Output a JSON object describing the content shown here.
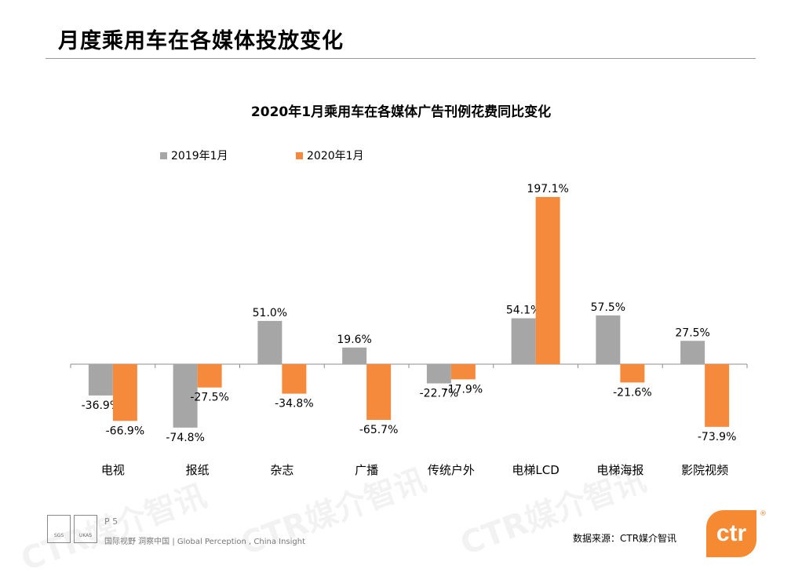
{
  "page": {
    "title": "月度乘用车在各媒体投放变化"
  },
  "chart_data": {
    "type": "bar",
    "title": "2020年1月乘用车在各媒体广告刊例花费同比变化",
    "categories": [
      "电视",
      "报纸",
      "杂志",
      "广播",
      "传统户外",
      "电梯LCD",
      "电梯海报",
      "影院视频"
    ],
    "series": [
      {
        "name": "2019年1月",
        "color": "#a6a6a6",
        "values": [
          -36.9,
          -74.8,
          51.0,
          19.6,
          -22.7,
          54.1,
          57.5,
          27.5
        ],
        "labels": [
          "-36.9%",
          "-74.8%",
          "51.0%",
          "19.6%",
          "-22.7%",
          "54.1%",
          "57.5%",
          "27.5%"
        ]
      },
      {
        "name": "2020年1月",
        "color": "#f68a3c",
        "values": [
          -66.9,
          -27.5,
          -34.8,
          -65.7,
          -17.9,
          197.1,
          -21.6,
          -73.9
        ],
        "labels": [
          "-66.9%",
          "-27.5%",
          "-34.8%",
          "-65.7%",
          "-17.9%",
          "197.1%",
          "-21.6%",
          "-73.9%"
        ]
      }
    ],
    "legend_position": "top-left",
    "grid": false,
    "ylim": [
      -80,
      200
    ]
  },
  "watermark": {
    "text": "CTR媒介智讯"
  },
  "footer": {
    "page_number": "P 5",
    "slogan": "国际视野  洞察中国 |  Global Perception , China  Insight",
    "source": "数据来源：CTR媒介智讯",
    "brand": "ctr",
    "brand_mark": "®",
    "cert_sgs": "SGS",
    "cert_ukas": "UKAS"
  }
}
